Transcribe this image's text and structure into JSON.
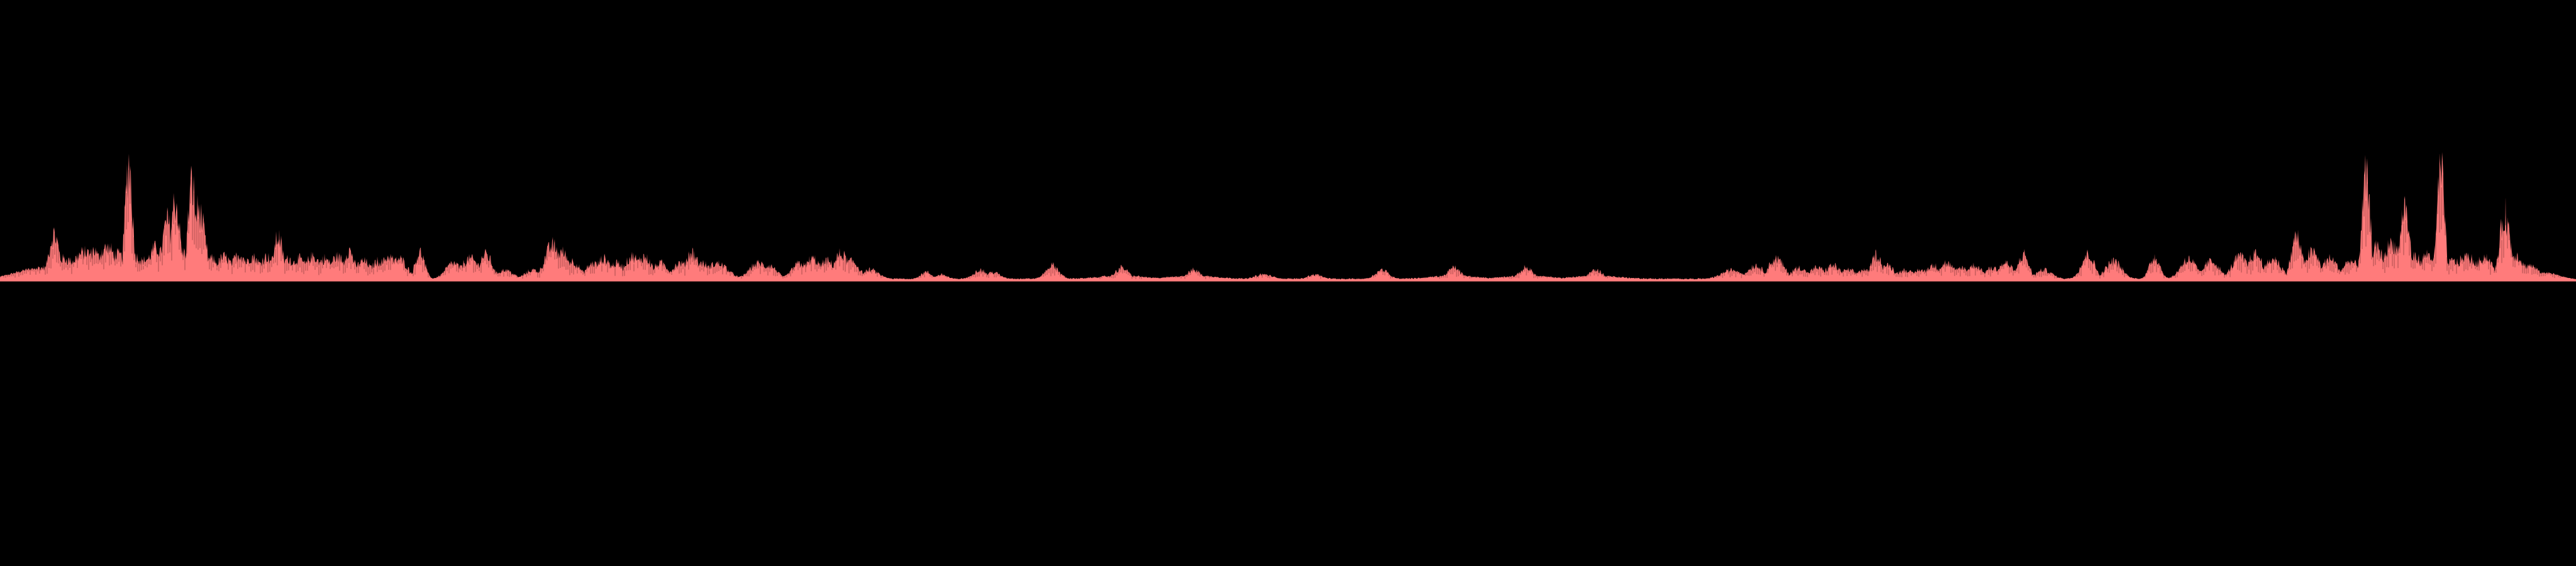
{
  "chart_data": {
    "type": "area",
    "title": "",
    "xlabel": "",
    "ylabel": "",
    "colors": {
      "background": "#000000",
      "fill": "#ff7b7b",
      "stroke": "#3a1616"
    },
    "axis_visible": false,
    "grid": false,
    "legend": "none",
    "xlim": [
      0,
      1
    ],
    "ylim": [
      0,
      1
    ],
    "peaks": [
      [
        0.016,
        0.01,
        0.05
      ],
      [
        0.021,
        0.002,
        0.2
      ],
      [
        0.0245,
        0.006,
        0.09
      ],
      [
        0.028,
        0.005,
        0.08
      ],
      [
        0.033,
        0.005,
        0.12
      ],
      [
        0.0365,
        0.002,
        0.13
      ],
      [
        0.0415,
        0.004,
        0.14
      ],
      [
        0.0455,
        0.004,
        0.11
      ],
      [
        0.05,
        0.0014,
        0.53
      ],
      [
        0.0525,
        0.004,
        0.1
      ],
      [
        0.0575,
        0.004,
        0.09
      ],
      [
        0.0605,
        0.003,
        0.14
      ],
      [
        0.065,
        0.002,
        0.26
      ],
      [
        0.068,
        0.0018,
        0.35
      ],
      [
        0.071,
        0.003,
        0.12
      ],
      [
        0.0745,
        0.0015,
        0.43
      ],
      [
        0.077,
        0.0025,
        0.31
      ],
      [
        0.082,
        0.003,
        0.09
      ],
      [
        0.087,
        0.003,
        0.1
      ],
      [
        0.093,
        0.003,
        0.11
      ],
      [
        0.098,
        0.003,
        0.1
      ],
      [
        0.1035,
        0.003,
        0.1
      ],
      [
        0.108,
        0.0018,
        0.19
      ],
      [
        0.112,
        0.003,
        0.09
      ],
      [
        0.116,
        0.003,
        0.09
      ],
      [
        0.1215,
        0.003,
        0.1
      ],
      [
        0.126,
        0.003,
        0.09
      ],
      [
        0.131,
        0.003,
        0.1
      ],
      [
        0.1355,
        0.002,
        0.13
      ],
      [
        0.141,
        0.003,
        0.08
      ],
      [
        0.147,
        0.003,
        0.08
      ],
      [
        0.151,
        0.003,
        0.1
      ],
      [
        0.155,
        0.003,
        0.09
      ],
      [
        0.163,
        0.0018,
        0.12
      ],
      [
        0.176,
        0.003,
        0.07
      ],
      [
        0.1825,
        0.0035,
        0.09
      ],
      [
        0.1885,
        0.0025,
        0.11
      ],
      [
        0.196,
        0.003,
        0.04
      ],
      [
        0.207,
        0.003,
        0.04
      ],
      [
        0.2145,
        0.003,
        0.15
      ],
      [
        0.218,
        0.003,
        0.12
      ],
      [
        0.222,
        0.003,
        0.08
      ],
      [
        0.2305,
        0.003,
        0.07
      ],
      [
        0.2345,
        0.003,
        0.09
      ],
      [
        0.2395,
        0.003,
        0.07
      ],
      [
        0.2455,
        0.003,
        0.1
      ],
      [
        0.25,
        0.003,
        0.1
      ],
      [
        0.2565,
        0.003,
        0.07
      ],
      [
        0.264,
        0.003,
        0.07
      ],
      [
        0.2685,
        0.0025,
        0.12
      ],
      [
        0.272,
        0.004,
        0.07
      ],
      [
        0.2785,
        0.004,
        0.07
      ],
      [
        0.2945,
        0.0035,
        0.07
      ],
      [
        0.2985,
        0.003,
        0.06
      ],
      [
        0.3105,
        0.003,
        0.07
      ],
      [
        0.3155,
        0.003,
        0.09
      ],
      [
        0.321,
        0.003,
        0.08
      ],
      [
        0.3265,
        0.003,
        0.11
      ],
      [
        0.3305,
        0.003,
        0.08
      ],
      [
        0.338,
        0.003,
        0.04
      ],
      [
        0.3595,
        0.002,
        0.03
      ],
      [
        0.3655,
        0.002,
        0.02
      ],
      [
        0.3805,
        0.0025,
        0.04
      ],
      [
        0.3855,
        0.0025,
        0.03
      ],
      [
        0.4085,
        0.0025,
        0.06
      ],
      [
        0.4355,
        0.0025,
        0.05
      ],
      [
        0.4355,
        0.008,
        0.015
      ],
      [
        0.4635,
        0.0025,
        0.04
      ],
      [
        0.4635,
        0.008,
        0.015
      ],
      [
        0.4905,
        0.003,
        0.02
      ],
      [
        0.5105,
        0.0025,
        0.02
      ],
      [
        0.5365,
        0.0025,
        0.04
      ],
      [
        0.5645,
        0.0025,
        0.05
      ],
      [
        0.5645,
        0.008,
        0.015
      ],
      [
        0.5925,
        0.0025,
        0.05
      ],
      [
        0.5925,
        0.008,
        0.015
      ],
      [
        0.6195,
        0.0025,
        0.04
      ],
      [
        0.6195,
        0.008,
        0.015
      ],
      [
        0.6725,
        0.004,
        0.04
      ],
      [
        0.6815,
        0.003,
        0.06
      ],
      [
        0.6895,
        0.003,
        0.09
      ],
      [
        0.6985,
        0.003,
        0.05
      ],
      [
        0.7055,
        0.003,
        0.05
      ],
      [
        0.7115,
        0.003,
        0.06
      ],
      [
        0.7175,
        0.003,
        0.04
      ],
      [
        0.7235,
        0.003,
        0.04
      ],
      [
        0.7285,
        0.002,
        0.11
      ],
      [
        0.7325,
        0.003,
        0.06
      ],
      [
        0.7395,
        0.003,
        0.04
      ],
      [
        0.7455,
        0.003,
        0.04
      ],
      [
        0.7505,
        0.003,
        0.06
      ],
      [
        0.7555,
        0.003,
        0.07
      ],
      [
        0.7615,
        0.003,
        0.05
      ],
      [
        0.7665,
        0.003,
        0.06
      ],
      [
        0.7735,
        0.003,
        0.05
      ],
      [
        0.7785,
        0.003,
        0.07
      ],
      [
        0.7855,
        0.002,
        0.11
      ],
      [
        0.7935,
        0.003,
        0.04
      ],
      [
        0.8105,
        0.0025,
        0.11
      ],
      [
        0.8205,
        0.003,
        0.08
      ],
      [
        0.8365,
        0.002,
        0.1
      ],
      [
        0.8495,
        0.003,
        0.09
      ],
      [
        0.8585,
        0.003,
        0.08
      ],
      [
        0.8695,
        0.003,
        0.1
      ],
      [
        0.8755,
        0.003,
        0.11
      ],
      [
        0.8825,
        0.003,
        0.09
      ],
      [
        0.8915,
        0.002,
        0.19
      ],
      [
        0.8975,
        0.003,
        0.12
      ],
      [
        0.9045,
        0.003,
        0.09
      ],
      [
        0.9125,
        0.003,
        0.08
      ],
      [
        0.9185,
        0.0016,
        0.45
      ],
      [
        0.9225,
        0.003,
        0.14
      ],
      [
        0.9285,
        0.003,
        0.16
      ],
      [
        0.9335,
        0.0018,
        0.32
      ],
      [
        0.9375,
        0.003,
        0.1
      ],
      [
        0.9425,
        0.003,
        0.11
      ],
      [
        0.9475,
        0.0014,
        0.5
      ],
      [
        0.9525,
        0.004,
        0.08
      ],
      [
        0.9575,
        0.004,
        0.1
      ],
      [
        0.9645,
        0.003,
        0.1
      ],
      [
        0.9725,
        0.002,
        0.29
      ],
      [
        0.9765,
        0.003,
        0.11
      ],
      [
        0.9815,
        0.004,
        0.06
      ],
      [
        0.9875,
        0.006,
        0.03
      ]
    ],
    "noise": [
      0.013,
      0.985
    ]
  }
}
